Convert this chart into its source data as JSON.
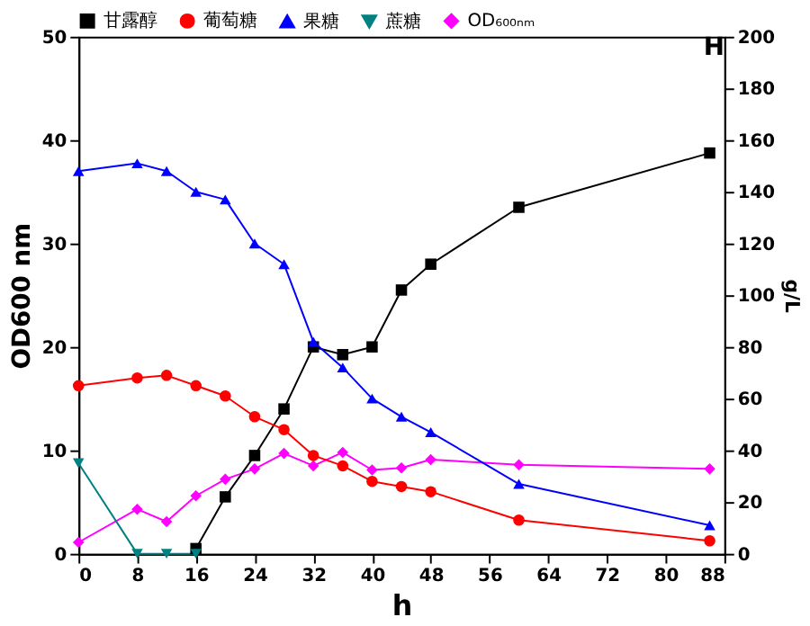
{
  "chart_data": {
    "type": "line",
    "xlabel": "h",
    "ylabel": "OD600 nm",
    "y2label": "g/L",
    "annotations": [
      "H"
    ],
    "xlim": [
      0,
      88
    ],
    "xticks": [
      0,
      8,
      16,
      24,
      32,
      40,
      48,
      56,
      64,
      72,
      80,
      88
    ],
    "ylim": [
      0,
      50
    ],
    "yticks": [
      0,
      10,
      20,
      30,
      40,
      50
    ],
    "y2lim": [
      0,
      200
    ],
    "y2ticks": [
      0,
      20,
      40,
      60,
      80,
      100,
      120,
      140,
      160,
      180,
      200
    ],
    "grid": false,
    "legend": "top",
    "line_style": "solid",
    "series": [
      {
        "name": "甘露醇",
        "color": "#000000",
        "marker": "square",
        "axis": "y2",
        "x": [
          16,
          20,
          24,
          28,
          32,
          36,
          40,
          44,
          48,
          60,
          86
        ],
        "values": [
          2,
          22,
          38,
          56,
          80,
          77,
          80,
          102,
          112,
          134,
          155
        ]
      },
      {
        "name": "葡萄糖",
        "color": "#ff0000",
        "marker": "circle",
        "axis": "y2",
        "x": [
          0,
          8,
          12,
          16,
          20,
          24,
          28,
          32,
          36,
          40,
          44,
          48,
          60,
          86
        ],
        "values": [
          65,
          68,
          69,
          65,
          61,
          53,
          48,
          38,
          34,
          28,
          26,
          24,
          13,
          5
        ]
      },
      {
        "name": "果糖",
        "color": "#0000ff",
        "marker": "triangle",
        "axis": "y2",
        "x": [
          0,
          8,
          12,
          16,
          20,
          24,
          28,
          32,
          36,
          40,
          44,
          48,
          60,
          86
        ],
        "values": [
          148,
          151,
          148,
          140,
          137,
          120,
          112,
          82,
          72,
          60,
          53,
          47,
          27,
          11
        ]
      },
      {
        "name": "蔗糖",
        "color": "#008080",
        "marker": "triangle-down",
        "axis": "y2",
        "x": [
          0,
          8,
          12,
          16
        ],
        "values": [
          35,
          0,
          0,
          0
        ]
      },
      {
        "name": "OD₆₀₀ₙₘ",
        "color": "#ff00ff",
        "marker": "diamond",
        "axis": "y",
        "x": [
          0,
          8,
          12,
          16,
          20,
          24,
          28,
          32,
          36,
          40,
          44,
          48,
          60,
          86
        ],
        "values": [
          1.1,
          4.3,
          3.1,
          5.6,
          7.2,
          8.2,
          9.7,
          8.5,
          9.8,
          8.1,
          8.3,
          9.1,
          8.6,
          8.2
        ]
      }
    ]
  }
}
